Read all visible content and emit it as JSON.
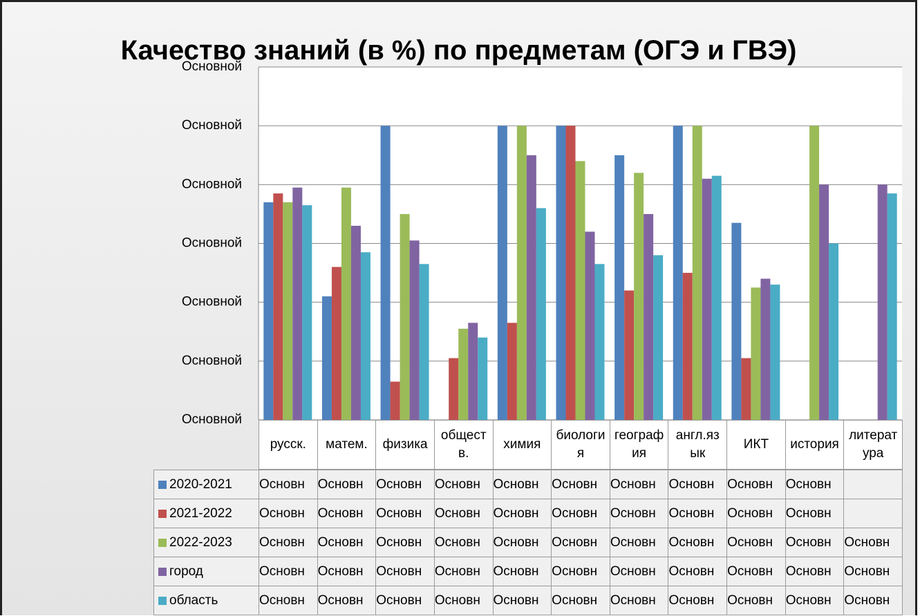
{
  "chart_data": {
    "type": "bar",
    "title": "Качество знаний (в %) по предметам (ОГЭ и ГВЭ)",
    "categories": [
      "русск.",
      "матем.",
      "физика",
      "обществ.",
      "химия",
      "биология",
      "география",
      "англ.язык",
      "ИКТ",
      "история",
      "литература"
    ],
    "series": [
      {
        "name": "2020-2021",
        "color": "#4f81bd",
        "values": [
          74,
          42,
          100,
          0,
          100,
          100,
          90,
          100,
          67,
          0,
          null
        ],
        "value_labels": [
          "Основн",
          "Основн",
          "Основн",
          "Основн",
          "Основн",
          "Основн",
          "Основн",
          "Основн",
          "Основн",
          "Основн",
          null
        ]
      },
      {
        "name": "2021-2022",
        "color": "#c0504d",
        "values": [
          77,
          52,
          13,
          21,
          33,
          100,
          44,
          50,
          21,
          0,
          null
        ],
        "value_labels": [
          "Основн",
          "Основн",
          "Основн",
          "Основн",
          "Основн",
          "Основн",
          "Основн",
          "Основн",
          "Основн",
          "Основн",
          null
        ]
      },
      {
        "name": "2022-2023",
        "color": "#9bbb59",
        "values": [
          74,
          79,
          70,
          31,
          100,
          88,
          84,
          100,
          45,
          100,
          0
        ],
        "value_labels": [
          "Основн",
          "Основн",
          "Основн",
          "Основн",
          "Основн",
          "Основн",
          "Основн",
          "Основн",
          "Основн",
          "Основн",
          "Основн"
        ]
      },
      {
        "name": "город",
        "color": "#8064a2",
        "values": [
          79,
          66,
          61,
          33,
          90,
          64,
          70,
          82,
          48,
          80,
          80
        ],
        "value_labels": [
          "Основн",
          "Основн",
          "Основн",
          "Основн",
          "Основн",
          "Основн",
          "Основн",
          "Основн",
          "Основн",
          "Основн",
          "Основн"
        ]
      },
      {
        "name": "область",
        "color": "#4bacc6",
        "values": [
          73,
          57,
          53,
          28,
          72,
          53,
          56,
          83,
          46,
          60,
          77
        ],
        "value_labels": [
          "Основн",
          "Основн",
          "Основн",
          "Основн",
          "Основн",
          "Основн",
          "Основн",
          "Основн",
          "Основн",
          "Основн",
          "Основн"
        ]
      }
    ],
    "ylim": [
      0,
      120
    ],
    "yticks": [
      {
        "value": 0,
        "label": "Основной"
      },
      {
        "value": 20,
        "label": "Основной"
      },
      {
        "value": 40,
        "label": "Основной"
      },
      {
        "value": 60,
        "label": "Основной"
      },
      {
        "value": 80,
        "label": "Основной"
      },
      {
        "value": 100,
        "label": "Основной"
      },
      {
        "value": 120,
        "label": "Основной"
      }
    ],
    "grid": true
  }
}
